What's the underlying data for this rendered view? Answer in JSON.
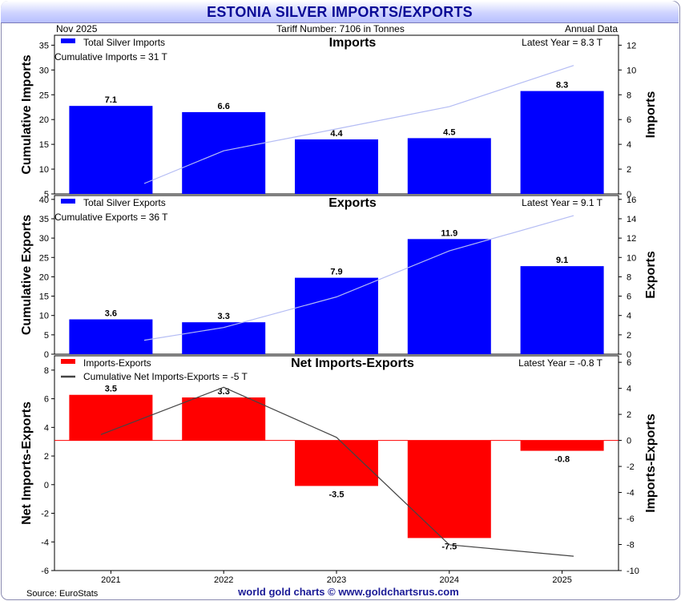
{
  "header": {
    "title": "ESTONIA SILVER IMPORTS/EXPORTS",
    "date": "Nov  2025",
    "tariff": "Tariff Number: 7106 in Tonnes",
    "frequency": "Annual Data"
  },
  "footer": {
    "source": "Source: EuroStats",
    "credit": "world gold charts © www.goldchartsrus.com"
  },
  "colors": {
    "bar": "#0000ff",
    "net_bar": "#ff0000",
    "cumulative_line": "#b4bcf4",
    "net_cumulative_line": "#444444",
    "zero_line": "#ff0000"
  },
  "chart_data": [
    {
      "type": "bar",
      "title": "Imports",
      "categories": [
        "2021",
        "2022",
        "2023",
        "2024",
        "2025"
      ],
      "series": [
        {
          "name": "Total Silver Imports",
          "axis": "right",
          "values": [
            7.1,
            6.6,
            4.4,
            4.5,
            8.3
          ],
          "labels": [
            "7.1",
            "6.6",
            "4.4",
            "4.5",
            "8.3"
          ]
        },
        {
          "name": "Cumulative Imports",
          "axis": "left",
          "type": "line",
          "values": [
            7.1,
            13.7,
            18.1,
            22.6,
            30.9
          ]
        }
      ],
      "legend": "Total Silver Imports",
      "cumulative_text": "Cumulative Imports = 31 T",
      "latest_text": "Latest Year = 8.3 T",
      "ylabel_left": "Cumulative Imports",
      "ylabel_right": "Imports",
      "ylim_left": [
        5,
        37
      ],
      "yticks_left": [
        5,
        10,
        15,
        20,
        25,
        30,
        35
      ],
      "ylim_right": [
        0,
        12.8
      ],
      "yticks_right": [
        0,
        2,
        4,
        6,
        8,
        10,
        12
      ]
    },
    {
      "type": "bar",
      "title": "Exports",
      "categories": [
        "2021",
        "2022",
        "2023",
        "2024",
        "2025"
      ],
      "series": [
        {
          "name": "Total Silver Exports",
          "axis": "right",
          "values": [
            3.6,
            3.3,
            7.9,
            11.9,
            9.1
          ],
          "labels": [
            "3.6",
            "3.3",
            "7.9",
            "11.9",
            "9.1"
          ]
        },
        {
          "name": "Cumulative Exports",
          "axis": "left",
          "type": "line",
          "values": [
            3.6,
            6.9,
            14.8,
            26.7,
            35.8
          ]
        }
      ],
      "legend": "Total Silver Exports",
      "cumulative_text": "Cumulative Exports = 36 T",
      "latest_text": "Latest Year = 9.1 T",
      "ylabel_left": "Cumulative Exports",
      "ylabel_right": "Exports",
      "ylim_left": [
        0,
        41
      ],
      "yticks_left": [
        0,
        5,
        10,
        15,
        20,
        25,
        30,
        35,
        40
      ],
      "ylim_right": [
        0,
        16.4
      ],
      "yticks_right": [
        0,
        2,
        4,
        6,
        8,
        10,
        12,
        14,
        16
      ]
    },
    {
      "type": "bar",
      "title": "Net Imports-Exports",
      "categories": [
        "2021",
        "2022",
        "2023",
        "2024",
        "2025"
      ],
      "series": [
        {
          "name": "Imports-Exports",
          "axis": "right",
          "values": [
            3.5,
            3.3,
            -3.5,
            -7.5,
            -0.8
          ],
          "labels": [
            "3.5",
            "3.3",
            "-3.5",
            "-7.5",
            "-0.8"
          ]
        },
        {
          "name": "Cumulative Net Imports-Exports",
          "axis": "left",
          "type": "line",
          "values": [
            3.5,
            6.8,
            3.3,
            -4.2,
            -5.0
          ]
        }
      ],
      "legend": "Imports-Exports",
      "legend2": "Cumulative Net Imports-Exports = -5 T",
      "latest_text": "Latest Year = -0.8 T",
      "ylabel_left": "Net Imports-Exports",
      "ylabel_right": "Imports-Exports",
      "ylim_left": [
        -6,
        9
      ],
      "yticks_left": [
        -6,
        -4,
        -2,
        0,
        2,
        4,
        6,
        8
      ],
      "ylim_right": [
        -10,
        6.5
      ],
      "yticks_right": [
        -10,
        -8,
        -6,
        -4,
        -2,
        0,
        2,
        4,
        6
      ],
      "xlabel": ""
    }
  ]
}
